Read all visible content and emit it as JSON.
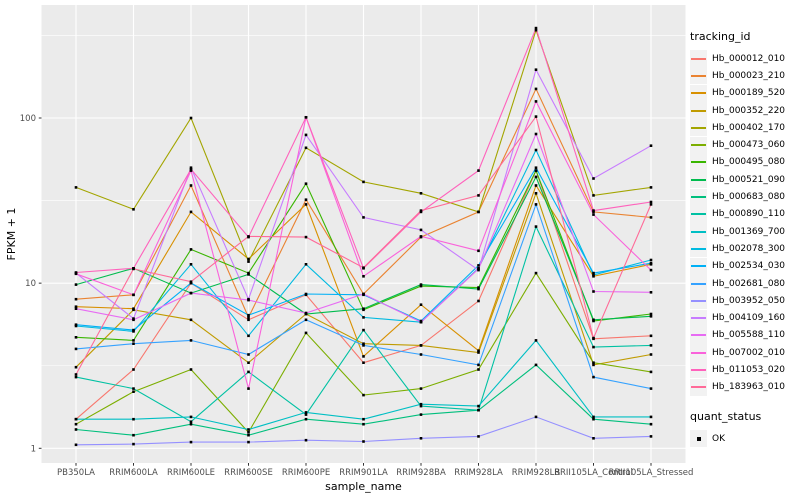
{
  "figure": {
    "x_axis": {
      "title": "sample_name"
    },
    "y_axis": {
      "title": "FPKM + 1",
      "tick_labels": [
        "1",
        "10",
        "100"
      ]
    }
  },
  "legend": {
    "tracking_title": "tracking_id",
    "quant_title": "quant_status",
    "quant_items": [
      {
        "label": "OK",
        "marker": "black-square-point"
      }
    ]
  },
  "colors": {
    "page_bg": "#FFFFFF",
    "panel_bg": "#EBEBEB",
    "grid": "#FFFFFF",
    "point": "#000000",
    "tick_label": "#4D4D4D",
    "axis_title": "#000000",
    "legend_key_bg": "#F2F2F2"
  },
  "chart_data": {
    "type": "line",
    "title": "",
    "xlabel": "sample_name",
    "ylabel": "FPKM + 1",
    "y_scale": "log10",
    "y_ticks": [
      1,
      10,
      100
    ],
    "y_minor_ticks": [
      3.162,
      31.62,
      316.2
    ],
    "ylim": [
      0.82,
      480
    ],
    "grid": true,
    "legend_position": "right",
    "point_marker": "small black square (quant_status = OK)",
    "x_categories": [
      "PB350LA",
      "RRIM600LA",
      "RRIM600LE",
      "RRIM600SE",
      "RRIM600PE",
      "RRIM901LA",
      "RRIM928BA",
      "RRIM928LA",
      "RRIM928LB",
      "RRII105LA_Control",
      "RRII105LA_Stressed"
    ],
    "series": [
      {
        "name": "Hb_000012_010",
        "color": "#F8766D",
        "values": [
          1.5,
          3.0,
          10,
          6.0,
          8.5,
          3.3,
          4.2,
          7.8,
          48,
          4.6,
          4.8
        ]
      },
      {
        "name": "Hb_000023_210",
        "color": "#EA8331",
        "values": [
          8.0,
          8.5,
          39,
          6.2,
          32,
          8.6,
          19,
          27,
          150,
          27,
          25
        ]
      },
      {
        "name": "Hb_000189_520",
        "color": "#D89000",
        "values": [
          7.2,
          7.0,
          27,
          14,
          30,
          3.6,
          7.4,
          3.9,
          39,
          11,
          13
        ]
      },
      {
        "name": "Hb_000352_220",
        "color": "#C09B00",
        "values": [
          3.1,
          6.9,
          6.0,
          3.3,
          6.5,
          4.3,
          4.2,
          3.8,
          35,
          3.2,
          3.7
        ]
      },
      {
        "name": "Hb_000402_170",
        "color": "#A3A500",
        "values": [
          38,
          28,
          100,
          13.5,
          66,
          41,
          35,
          27,
          340,
          34,
          38
        ]
      },
      {
        "name": "Hb_000473_060",
        "color": "#7CAE00",
        "values": [
          1.4,
          2.2,
          3.0,
          1.25,
          5.0,
          2.1,
          2.3,
          3.0,
          11.5,
          3.3,
          2.9
        ]
      },
      {
        "name": "Hb_000495_080",
        "color": "#39B600",
        "values": [
          4.7,
          4.5,
          16,
          11.5,
          40,
          6.9,
          9.6,
          9.4,
          48,
          5.9,
          6.5
        ]
      },
      {
        "name": "Hb_000521_090",
        "color": "#00BB4E",
        "values": [
          9.8,
          12.3,
          8.7,
          11.3,
          6.5,
          7.0,
          9.8,
          9.2,
          44,
          6.0,
          6.3
        ]
      },
      {
        "name": "Hb_000683_080",
        "color": "#00BF7D",
        "values": [
          1.3,
          1.2,
          1.4,
          1.2,
          1.5,
          1.4,
          1.6,
          1.7,
          3.2,
          1.5,
          1.4
        ]
      },
      {
        "name": "Hb_000890_110",
        "color": "#00C1A3",
        "values": [
          2.7,
          2.3,
          1.45,
          2.9,
          1.6,
          5.2,
          1.8,
          1.7,
          22,
          4.1,
          4.2
        ]
      },
      {
        "name": "Hb_001369_700",
        "color": "#00BFC4",
        "values": [
          1.5,
          1.5,
          1.55,
          1.3,
          1.65,
          1.5,
          1.85,
          1.8,
          4.5,
          1.55,
          1.55
        ]
      },
      {
        "name": "Hb_002078_300",
        "color": "#00BAE0",
        "values": [
          5.5,
          5.1,
          13,
          4.8,
          13,
          6.2,
          5.8,
          12.3,
          64,
          11.2,
          13.8
        ]
      },
      {
        "name": "Hb_002534_030",
        "color": "#00B0F6",
        "values": [
          5.6,
          5.2,
          10,
          6.4,
          8.6,
          8.5,
          5.9,
          12.8,
          50,
          11.5,
          13.2
        ]
      },
      {
        "name": "Hb_002681_080",
        "color": "#35A2FF",
        "values": [
          4.0,
          4.3,
          4.5,
          3.7,
          6.0,
          4.2,
          3.7,
          3.2,
          30,
          2.7,
          2.3
        ]
      },
      {
        "name": "Hb_003952_050",
        "color": "#9590FF",
        "values": [
          1.05,
          1.06,
          1.09,
          1.09,
          1.12,
          1.1,
          1.15,
          1.18,
          1.55,
          1.15,
          1.18
        ]
      },
      {
        "name": "Hb_004109_160",
        "color": "#C77CFF",
        "values": [
          11.5,
          6.1,
          50,
          8.0,
          79,
          25,
          21,
          12,
          196,
          43,
          68
        ]
      },
      {
        "name": "Hb_005588_110",
        "color": "#E76BF3",
        "values": [
          7.0,
          6.0,
          8.7,
          7.9,
          6.6,
          8.6,
          5.8,
          12.2,
          80,
          8.9,
          8.8
        ]
      },
      {
        "name": "Hb_007002_010",
        "color": "#FA62DB",
        "values": [
          11.4,
          8.5,
          48,
          2.3,
          101,
          11,
          19.2,
          15.7,
          126,
          26,
          12
        ]
      },
      {
        "name": "Hb_011053_020",
        "color": "#FF62BC",
        "values": [
          11.6,
          12.3,
          49,
          19,
          101,
          12.3,
          27,
          48,
          350,
          27.5,
          31
        ]
      },
      {
        "name": "Hb_183963_010",
        "color": "#FF6A98",
        "values": [
          2.8,
          12.2,
          10.2,
          19.2,
          19,
          12.4,
          27.5,
          34,
          102,
          4.65,
          30
        ]
      }
    ]
  }
}
